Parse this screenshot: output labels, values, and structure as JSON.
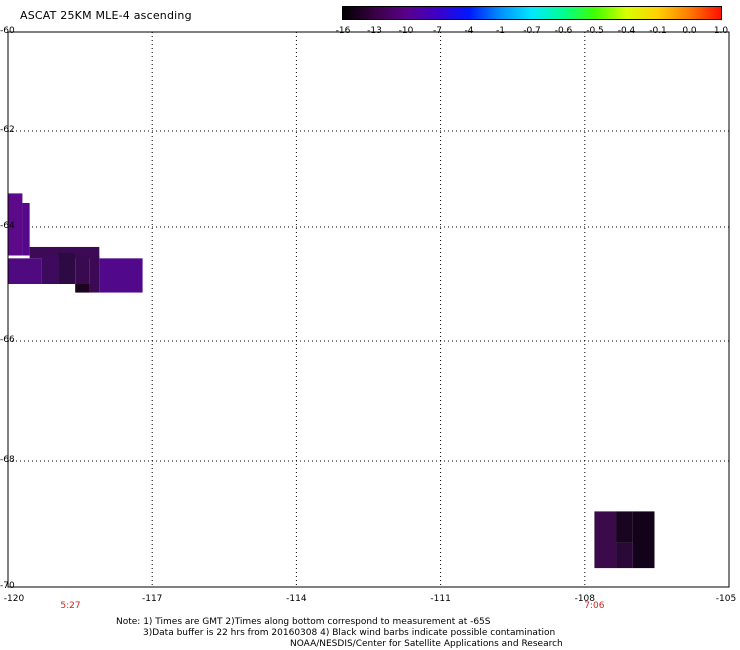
{
  "title": "ASCAT 25KM MLE-4 ascending",
  "colorbar": {
    "labels": [
      "-16",
      "-13",
      "-10",
      "-7",
      "-4",
      "-1",
      "-0.7",
      "-0.6",
      "-0.5",
      "-0.4",
      "-0.1",
      "0.0",
      "1.0"
    ],
    "colors": [
      "#000000",
      "#3a0044",
      "#5a008a",
      "#3d00c8",
      "#0018ff",
      "#0090ff",
      "#00e8ff",
      "#00ff90",
      "#40ff00",
      "#d8ff00",
      "#ffd000",
      "#ff7a00",
      "#ff1000"
    ]
  },
  "map": {
    "lat_labels": [
      "-60",
      "-62",
      "-64",
      "-66",
      "-68",
      "-70"
    ],
    "lon_labels": [
      "-120",
      "-117",
      "-114",
      "-111",
      "-108",
      "-105"
    ],
    "lon_range": [
      -120,
      -105
    ],
    "lat_range": [
      -70,
      -60
    ],
    "time_labels": [
      {
        "lon": -118.7,
        "text": "5:27"
      },
      {
        "lon": -107.8,
        "text": "7:06"
      }
    ],
    "swaths": [
      {
        "lon_min": -120.0,
        "lon_max": -119.7,
        "lat_max": -63.3,
        "lat_min": -64.5,
        "color": "#5c0a8a"
      },
      {
        "lon_min": -119.7,
        "lon_max": -119.55,
        "lat_max": -63.5,
        "lat_min": -64.5,
        "color": "#55088a"
      },
      {
        "lon_min": -119.55,
        "lon_max": -118.1,
        "lat_max": -64.35,
        "lat_min": -64.55,
        "color": "#3d0a55"
      },
      {
        "lon_min": -118.1,
        "lon_max": -117.2,
        "lat_max": -64.55,
        "lat_min": -65.15,
        "color": "#52088a"
      },
      {
        "lon_min": -120.0,
        "lon_max": -119.3,
        "lat_max": -64.55,
        "lat_min": -65.0,
        "color": "#500a80"
      },
      {
        "lon_min": -119.3,
        "lon_max": -118.95,
        "lat_max": -64.5,
        "lat_min": -65.0,
        "color": "#3d0a5e"
      },
      {
        "lon_min": -118.95,
        "lon_max": -118.6,
        "lat_max": -64.45,
        "lat_min": -65.0,
        "color": "#2e0a45"
      },
      {
        "lon_min": -118.6,
        "lon_max": -118.3,
        "lat_max": -64.5,
        "lat_min": -65.15,
        "color": "#3a0a50"
      },
      {
        "lon_min": -118.6,
        "lon_max": -118.3,
        "lat_max": -65.0,
        "lat_min": -65.15,
        "color": "#1c0420"
      },
      {
        "lon_min": -118.3,
        "lon_max": -118.1,
        "lat_max": -64.5,
        "lat_min": -65.15,
        "color": "#3c0a55"
      },
      {
        "lon_min": -107.8,
        "lon_max": -107.35,
        "lat_max": -68.8,
        "lat_min": -69.7,
        "color": "#3a0a4a"
      },
      {
        "lon_min": -107.35,
        "lon_max": -107.0,
        "lat_max": -68.8,
        "lat_min": -69.3,
        "color": "#1a0520"
      },
      {
        "lon_min": -107.0,
        "lon_max": -106.55,
        "lat_max": -68.8,
        "lat_min": -69.7,
        "color": "#12031a"
      },
      {
        "lon_min": -107.35,
        "lon_max": -107.0,
        "lat_max": -69.3,
        "lat_min": -69.7,
        "color": "#2a0838"
      }
    ]
  },
  "notes": [
    "Note: 1) Times are GMT 2)Times along bottom correspond to measurement at -65S",
    "3)Data buffer is 22 hrs from 20160308 4) Black wind barbs indicate possible contamination",
    "NOAA/NESDIS/Center for Satellite Applications and Research"
  ]
}
